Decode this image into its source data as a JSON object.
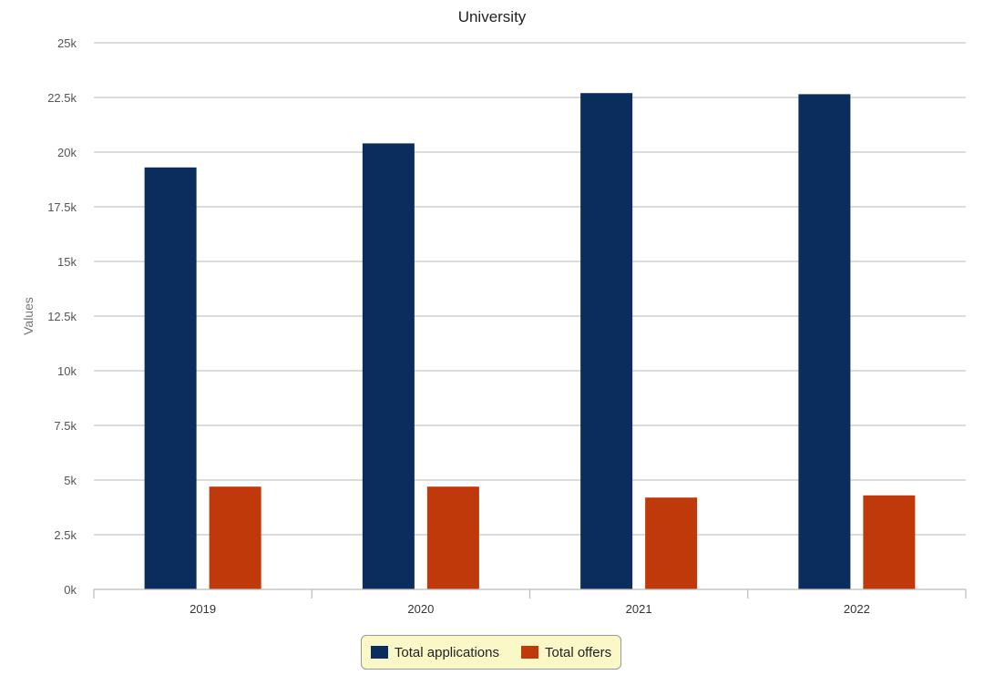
{
  "chart_data": {
    "type": "bar",
    "title": "University",
    "ylabel": "Values",
    "xlabel": "",
    "categories": [
      "2019",
      "2020",
      "2021",
      "2022"
    ],
    "ylim": [
      0,
      25000
    ],
    "yticks": [
      0,
      2500,
      5000,
      7500,
      10000,
      12500,
      15000,
      17500,
      20000,
      22500,
      25000
    ],
    "ytick_labels": [
      "0k",
      "2.5k",
      "5k",
      "7.5k",
      "10k",
      "12.5k",
      "15k",
      "17.5k",
      "20k",
      "22.5k",
      "25k"
    ],
    "grid": true,
    "legend_position": "bottom",
    "series": [
      {
        "name": "Total applications",
        "color": "#0b2d5e",
        "values": [
          19300,
          20400,
          22700,
          22650
        ]
      },
      {
        "name": "Total offers",
        "color": "#c0390b",
        "values": [
          4700,
          4700,
          4200,
          4300
        ]
      }
    ]
  }
}
